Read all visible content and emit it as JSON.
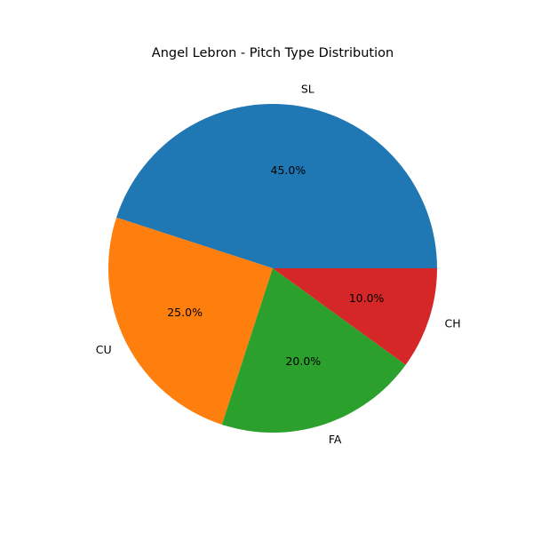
{
  "chart_data": {
    "type": "pie",
    "title": "Angel Lebron - Pitch Type Distribution",
    "categories": [
      "SL",
      "CU",
      "FA",
      "CH"
    ],
    "values": [
      45.0,
      25.0,
      20.0,
      10.0
    ],
    "percent_labels": [
      "45.0%",
      "25.0%",
      "20.0%",
      "10.0%"
    ],
    "colors": [
      "#1f77b4",
      "#ff7f0e",
      "#2ca02c",
      "#d62728"
    ],
    "start_angle": 0,
    "direction": "counterclockwise",
    "legend": "none"
  }
}
